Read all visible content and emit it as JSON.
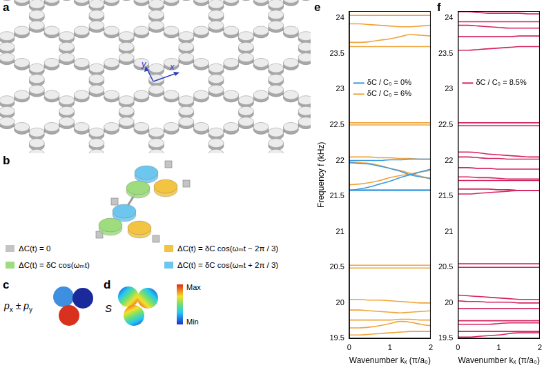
{
  "panels": {
    "a": {
      "label": "a",
      "axis_labels": {
        "x": "x",
        "y": "y"
      }
    },
    "b": {
      "label": "b",
      "items": [
        {
          "color": "#c4c4c4",
          "text": "ΔC(t) = 0"
        },
        {
          "color": "#f3c441",
          "text": "ΔC(t) = δC cos(ωₘt − 2π / 3)"
        },
        {
          "color": "#9edc7e",
          "text": "ΔC(t) = δC cos(ωₘt)"
        },
        {
          "color": "#6cc6ee",
          "text": "ΔC(t) = δC cos(ωₘt + 2π / 3)"
        }
      ]
    },
    "c": {
      "label": "c",
      "mode": [
        {
          "t": "p"
        },
        {
          "t": "x",
          "sub": true
        },
        {
          "t": " ± p"
        },
        {
          "t": "y",
          "sub": true
        }
      ]
    },
    "d": {
      "label": "d",
      "mode": "S",
      "colorbar": {
        "max": "Max",
        "min": "Min"
      }
    }
  },
  "chart_data": [
    {
      "title": "e",
      "type": "line",
      "x_label": "Wavenumber kₓ (π/a₀)",
      "y_label": "Frequency f (kHz)",
      "xlim": [
        0,
        2
      ],
      "xticks": [
        0,
        1,
        2
      ],
      "ylim": [
        19.5,
        24.1
      ],
      "yticks": [
        19.5,
        20,
        20.5,
        21,
        21.5,
        22,
        22.5,
        23,
        23.5,
        24
      ],
      "grid": false,
      "legend": "upper left",
      "x": [
        0,
        0.25,
        0.5,
        0.75,
        1,
        1.25,
        1.5,
        1.75,
        2
      ],
      "series": [
        {
          "name": "δC / C₀ = 0%",
          "color": "#3b9ae1",
          "bands": [
            [
              22.0,
              22.0,
              22.0,
              22.0,
              22.01,
              22.01,
              22.02,
              22.02,
              22.02
            ],
            [
              21.97,
              21.96,
              21.95,
              21.92,
              21.89,
              21.85,
              21.8,
              21.77,
              21.75
            ],
            [
              21.58,
              21.6,
              21.63,
              21.67,
              21.71,
              21.76,
              21.8,
              21.84,
              21.88
            ],
            [
              21.58,
              21.58,
              21.58,
              21.58,
              21.58,
              21.58,
              21.58,
              21.58,
              21.58
            ]
          ]
        },
        {
          "name": "δC / C₀ = 6%",
          "color": "#f0a43a",
          "bands": [
            [
              24.04,
              24.04,
              24.04,
              24.04,
              24.04,
              24.04,
              24.04,
              24.04,
              24.04
            ],
            [
              23.92,
              23.92,
              23.91,
              23.9,
              23.89,
              23.88,
              23.88,
              23.89,
              23.9
            ],
            [
              23.66,
              23.66,
              23.67,
              23.69,
              23.71,
              23.74,
              23.77,
              23.76,
              23.75
            ],
            [
              23.6,
              23.6,
              23.6,
              23.6,
              23.6,
              23.6,
              23.6,
              23.6,
              23.6
            ],
            [
              22.53,
              22.53,
              22.53,
              22.53,
              22.53,
              22.53,
              22.53,
              22.53,
              22.53
            ],
            [
              22.5,
              22.5,
              22.5,
              22.5,
              22.5,
              22.5,
              22.5,
              22.5,
              22.5
            ],
            [
              22.05,
              22.05,
              22.05,
              22.04,
              22.04,
              22.03,
              22.03,
              22.02,
              22.02
            ],
            [
              21.98,
              21.97,
              21.96,
              21.93,
              21.89,
              21.86,
              21.82,
              21.78,
              21.74
            ],
            [
              21.66,
              21.67,
              21.69,
              21.72,
              21.76,
              21.79,
              21.81,
              21.84,
              21.86
            ],
            [
              21.59,
              21.59,
              21.59,
              21.59,
              21.59,
              21.59,
              21.59,
              21.59,
              21.59
            ],
            [
              20.53,
              20.53,
              20.53,
              20.53,
              20.53,
              20.53,
              20.53,
              20.53,
              20.53
            ],
            [
              20.49,
              20.49,
              20.49,
              20.49,
              20.49,
              20.49,
              20.49,
              20.49,
              20.49
            ],
            [
              20.05,
              20.05,
              20.04,
              20.04,
              20.03,
              20.02,
              20.01,
              20.0,
              20.0
            ],
            [
              19.9,
              19.9,
              19.89,
              19.88,
              19.87,
              19.86,
              19.87,
              19.88,
              19.89
            ],
            [
              19.76,
              19.76,
              19.76,
              19.76,
              19.76,
              19.77,
              19.77,
              19.76,
              19.76
            ],
            [
              19.65,
              19.65,
              19.66,
              19.68,
              19.71,
              19.74,
              19.73,
              19.7,
              19.68
            ],
            [
              19.55,
              19.55,
              19.56,
              19.57,
              19.58,
              19.59,
              19.6,
              19.6,
              19.6
            ]
          ]
        }
      ]
    },
    {
      "title": "f",
      "type": "line",
      "x_label": "Wavenumber kₓ (π/a₀)",
      "xlim": [
        0,
        2
      ],
      "xticks": [
        0,
        1,
        2
      ],
      "ylim": [
        19.5,
        24.1
      ],
      "yticks": [
        19.5,
        20,
        20.5,
        21,
        21.5,
        22,
        22.5,
        23,
        23.5,
        24
      ],
      "grid": false,
      "legend": "upper left",
      "x": [
        0,
        0.25,
        0.5,
        0.75,
        1,
        1.25,
        1.5,
        1.75,
        2
      ],
      "series": [
        {
          "name": "δC / C₀ = 8.5%",
          "color": "#d6245f",
          "bands": [
            [
              24.09,
              24.09,
              24.08,
              24.07,
              24.07,
              24.07,
              24.07,
              24.06,
              24.06
            ],
            [
              23.95,
              23.95,
              23.95,
              23.95,
              23.95,
              23.95,
              23.95,
              23.95,
              23.95
            ],
            [
              23.9,
              23.9,
              23.89,
              23.88,
              23.87,
              23.86,
              23.86,
              23.86,
              23.86
            ],
            [
              23.74,
              23.74,
              23.74,
              23.74,
              23.74,
              23.74,
              23.75,
              23.75,
              23.75
            ],
            [
              23.55,
              23.55,
              23.56,
              23.57,
              23.58,
              23.59,
              23.6,
              23.6,
              23.6
            ],
            [
              22.53,
              22.53,
              22.53,
              22.53,
              22.53,
              22.53,
              22.53,
              22.53,
              22.53
            ],
            [
              22.49,
              22.49,
              22.49,
              22.49,
              22.49,
              22.49,
              22.49,
              22.49,
              22.49
            ],
            [
              22.12,
              22.12,
              22.11,
              22.09,
              22.08,
              22.07,
              22.06,
              22.05,
              22.05
            ],
            [
              22.05,
              22.05,
              22.04,
              22.03,
              22.03,
              22.02,
              22.02,
              22.02,
              22.02
            ],
            [
              21.9,
              21.9,
              21.89,
              21.89,
              21.88,
              21.88,
              21.88,
              21.88,
              21.88
            ],
            [
              21.77,
              21.77,
              21.76,
              21.76,
              21.75,
              21.74,
              21.74,
              21.74,
              21.74
            ],
            [
              21.72,
              21.72,
              21.72,
              21.72,
              21.72,
              21.72,
              21.72,
              21.72,
              21.72
            ],
            [
              21.6,
              21.6,
              21.6,
              21.6,
              21.59,
              21.59,
              21.58,
              21.58,
              21.58
            ],
            [
              21.53,
              21.53,
              21.54,
              21.55,
              21.56,
              21.57,
              21.58,
              21.58,
              21.58
            ],
            [
              20.55,
              20.55,
              20.55,
              20.55,
              20.55,
              20.55,
              20.55,
              20.55,
              20.55
            ],
            [
              20.5,
              20.5,
              20.5,
              20.5,
              20.5,
              20.5,
              20.5,
              20.5,
              20.5
            ],
            [
              20.11,
              20.1,
              20.09,
              20.08,
              20.07,
              20.06,
              20.05,
              20.05,
              20.05
            ],
            [
              20.03,
              20.02,
              20.02,
              20.01,
              20.01,
              20.01,
              20.0,
              20.0,
              20.0
            ],
            [
              19.92,
              19.92,
              19.92,
              19.92,
              19.92,
              19.92,
              19.92,
              19.92,
              19.92
            ],
            [
              19.75,
              19.75,
              19.75,
              19.75,
              19.75,
              19.75,
              19.75,
              19.75,
              19.75
            ],
            [
              19.7,
              19.7,
              19.7,
              19.7,
              19.71,
              19.72,
              19.72,
              19.72,
              19.72
            ],
            [
              19.6,
              19.6,
              19.6,
              19.6,
              19.6,
              19.6,
              19.6,
              19.6,
              19.6
            ],
            [
              19.52,
              19.52,
              19.53,
              19.54,
              19.55,
              19.57,
              19.58,
              19.58,
              19.58
            ]
          ]
        }
      ]
    }
  ]
}
